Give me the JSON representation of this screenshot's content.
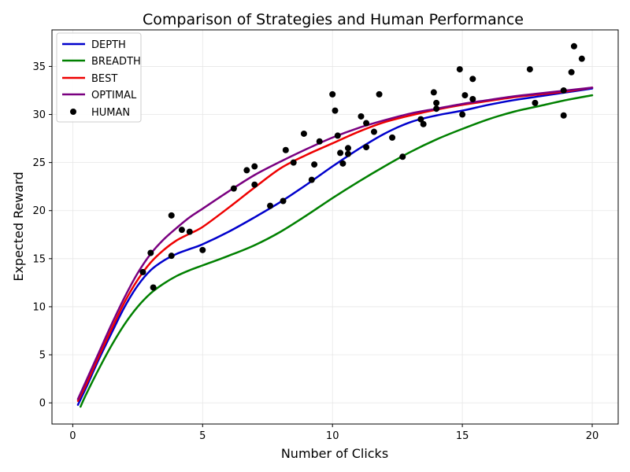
{
  "chart_data": {
    "type": "line",
    "title": "Comparison of Strategies and Human Performance",
    "xlabel": "Number of Clicks",
    "ylabel": "Expected Reward",
    "xlim": [
      -0.8,
      21.0
    ],
    "ylim": [
      -2.2,
      38.8
    ],
    "xticks": [
      0,
      5,
      10,
      15,
      20
    ],
    "yticks": [
      0,
      5,
      10,
      15,
      20,
      25,
      30,
      35
    ],
    "grid": true,
    "legend_position": "upper-left",
    "series": [
      {
        "name": "DEPTH",
        "color": "#0000cc",
        "x": [
          0.2,
          0.5,
          1,
          1.5,
          2,
          2.5,
          3,
          3.5,
          4,
          4.5,
          5,
          6,
          7,
          8,
          9,
          10,
          11,
          12,
          13,
          14,
          15,
          16,
          17,
          18,
          19,
          20
        ],
        "y": [
          -0.2,
          1.5,
          4.5,
          7.3,
          10.0,
          12.2,
          13.8,
          14.8,
          15.5,
          16.0,
          16.5,
          17.8,
          19.3,
          20.9,
          22.7,
          24.6,
          26.4,
          28.0,
          29.2,
          29.9,
          30.4,
          31.0,
          31.5,
          31.9,
          32.3,
          32.7
        ]
      },
      {
        "name": "BREADTH",
        "color": "#008000",
        "x": [
          0.3,
          0.5,
          1,
          1.5,
          2,
          2.5,
          3,
          3.5,
          4,
          4.5,
          5,
          6,
          7,
          8,
          9,
          10,
          11,
          12,
          13,
          14,
          15,
          16,
          17,
          18,
          19,
          20
        ],
        "y": [
          -0.4,
          0.8,
          3.5,
          6.0,
          8.2,
          10.0,
          11.4,
          12.4,
          13.2,
          13.8,
          14.3,
          15.3,
          16.4,
          17.8,
          19.5,
          21.3,
          23.0,
          24.6,
          26.1,
          27.4,
          28.5,
          29.5,
          30.3,
          30.9,
          31.5,
          32.0
        ]
      },
      {
        "name": "BEST",
        "color": "#ee0000",
        "x": [
          0.2,
          0.5,
          1,
          1.5,
          2,
          2.5,
          3,
          3.5,
          4,
          4.5,
          5,
          6,
          7,
          8,
          9,
          10,
          11,
          12,
          13,
          14,
          15,
          16,
          17,
          18,
          19,
          20
        ],
        "y": [
          0.2,
          1.8,
          4.8,
          7.7,
          10.5,
          12.8,
          14.6,
          15.9,
          16.9,
          17.6,
          18.3,
          20.3,
          22.4,
          24.4,
          25.8,
          27.0,
          28.2,
          29.2,
          29.9,
          30.5,
          31.0,
          31.4,
          31.8,
          32.1,
          32.4,
          32.8
        ]
      },
      {
        "name": "OPTIMAL",
        "color": "#7a0080",
        "x": [
          0.2,
          0.5,
          1,
          1.5,
          2,
          2.5,
          3,
          3.5,
          4,
          4.5,
          5,
          6,
          7,
          8,
          9,
          10,
          11,
          12,
          13,
          14,
          15,
          16,
          17,
          18,
          19,
          20
        ],
        "y": [
          0.4,
          2.2,
          5.2,
          8.2,
          11.0,
          13.5,
          15.5,
          17.0,
          18.2,
          19.3,
          20.2,
          22.0,
          23.7,
          25.1,
          26.4,
          27.6,
          28.6,
          29.4,
          30.1,
          30.6,
          31.1,
          31.5,
          31.9,
          32.2,
          32.5,
          32.8
        ]
      }
    ],
    "scatter": {
      "name": "HUMAN",
      "color": "#000000",
      "points": [
        [
          2.7,
          13.6
        ],
        [
          3.0,
          15.6
        ],
        [
          3.1,
          12.0
        ],
        [
          3.8,
          19.5
        ],
        [
          3.8,
          15.3
        ],
        [
          4.2,
          18.0
        ],
        [
          4.5,
          17.8
        ],
        [
          5.0,
          15.9
        ],
        [
          6.2,
          22.3
        ],
        [
          6.7,
          24.2
        ],
        [
          7.0,
          22.7
        ],
        [
          7.0,
          24.6
        ],
        [
          7.6,
          20.5
        ],
        [
          8.1,
          21.0
        ],
        [
          8.2,
          26.3
        ],
        [
          8.5,
          25.0
        ],
        [
          8.9,
          28.0
        ],
        [
          9.2,
          23.2
        ],
        [
          9.3,
          24.8
        ],
        [
          9.5,
          27.2
        ],
        [
          10.0,
          32.1
        ],
        [
          10.1,
          30.4
        ],
        [
          10.2,
          27.8
        ],
        [
          10.3,
          26.0
        ],
        [
          10.4,
          24.9
        ],
        [
          10.6,
          26.5
        ],
        [
          10.6,
          25.9
        ],
        [
          11.1,
          29.8
        ],
        [
          11.3,
          29.1
        ],
        [
          11.3,
          26.6
        ],
        [
          11.6,
          28.2
        ],
        [
          11.8,
          32.1
        ],
        [
          12.3,
          27.6
        ],
        [
          12.7,
          25.6
        ],
        [
          13.4,
          29.5
        ],
        [
          13.5,
          29.0
        ],
        [
          13.9,
          32.3
        ],
        [
          14.0,
          31.2
        ],
        [
          14.0,
          30.6
        ],
        [
          14.9,
          34.7
        ],
        [
          15.0,
          30.0
        ],
        [
          15.1,
          32.0
        ],
        [
          15.4,
          31.6
        ],
        [
          15.4,
          33.7
        ],
        [
          17.6,
          34.7
        ],
        [
          17.8,
          31.2
        ],
        [
          18.9,
          32.5
        ],
        [
          18.9,
          29.9
        ],
        [
          19.2,
          34.4
        ],
        [
          19.3,
          37.1
        ],
        [
          19.6,
          35.8
        ]
      ]
    }
  }
}
